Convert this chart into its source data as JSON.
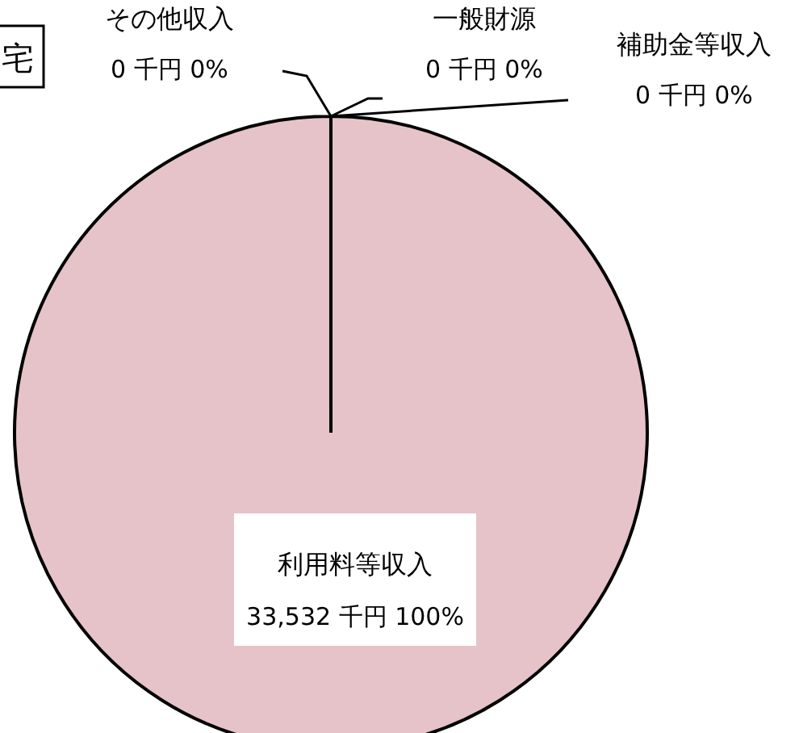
{
  "chart_data": {
    "type": "pie",
    "title": "宅",
    "categories": [
      "利用料等収入",
      "補助金等収入",
      "一般財源",
      "その他収入"
    ],
    "values": [
      33532,
      0,
      0,
      0
    ],
    "value_labels": [
      "33,532 千円 100%",
      "0 千円 0%",
      "0 千円 0%",
      "0 千円 0%"
    ],
    "colors": [
      "#e6c3c8",
      "#e6c3c8",
      "#e6c3c8",
      "#e6c3c8"
    ],
    "legend": false
  }
}
